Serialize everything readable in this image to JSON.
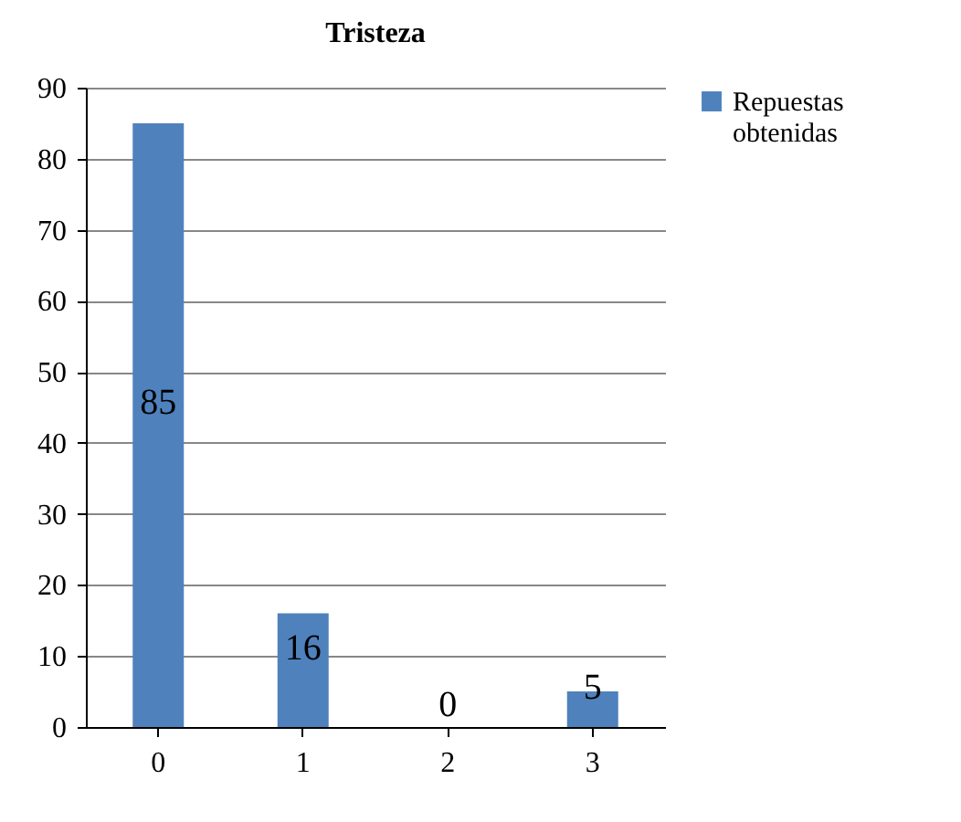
{
  "chart_data": {
    "type": "bar",
    "title": "Tristeza",
    "categories": [
      "0",
      "1",
      "2",
      "3"
    ],
    "series": [
      {
        "name": "Repuestas obtenidas",
        "color": "#4f81bd",
        "values": [
          85,
          16,
          0,
          5
        ]
      }
    ],
    "ylim": [
      0,
      90
    ],
    "yticks": [
      0,
      10,
      20,
      30,
      40,
      50,
      60,
      70,
      80,
      90
    ],
    "grid": "y",
    "legend": "right",
    "data_labels": true
  }
}
